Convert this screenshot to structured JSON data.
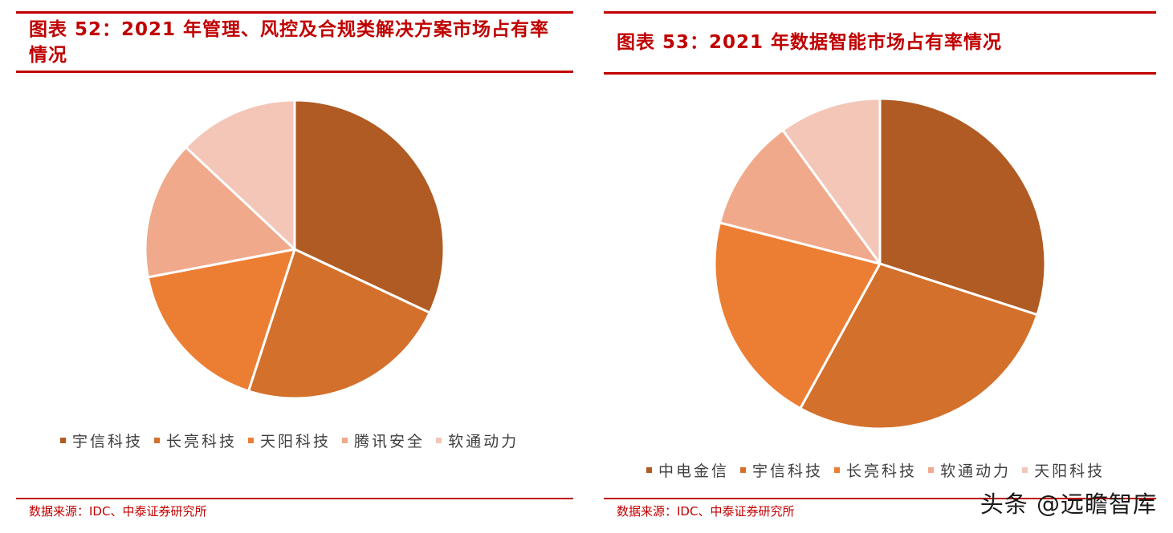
{
  "panels": [
    {
      "title": "图表 52：2021 年管理、风控及合规类解决方案市场占有率情况",
      "source": "数据来源：IDC、中泰证券研究所"
    },
    {
      "title": "图表 53：2021 年数据智能市场占有率情况",
      "source": "数据来源：IDC、中泰证券研究所"
    }
  ],
  "watermark": "头条 @远瞻智库",
  "chart_data": [
    {
      "type": "pie",
      "slices": [
        {
          "label": "宇信科技",
          "value": 32.0,
          "color": "#b05b23"
        },
        {
          "label": "长亮科技",
          "value": 23.0,
          "color": "#d3702c"
        },
        {
          "label": "天阳科技",
          "value": 17.0,
          "color": "#ec7e34"
        },
        {
          "label": "腾讯安全",
          "value": 15.0,
          "color": "#f0a98a"
        },
        {
          "label": "软通动力",
          "value": 13.0,
          "color": "#f3c6b8"
        }
      ]
    },
    {
      "type": "pie",
      "slices": [
        {
          "label": "中电金信",
          "value": 30.0,
          "color": "#b05b23"
        },
        {
          "label": "宇信科技",
          "value": 28.0,
          "color": "#d3702c"
        },
        {
          "label": "长亮科技",
          "value": 21.0,
          "color": "#ec7e34"
        },
        {
          "label": "软通动力",
          "value": 11.0,
          "color": "#f0a98a"
        },
        {
          "label": "天阳科技",
          "value": 10.0,
          "color": "#f3c6b8"
        }
      ]
    }
  ]
}
